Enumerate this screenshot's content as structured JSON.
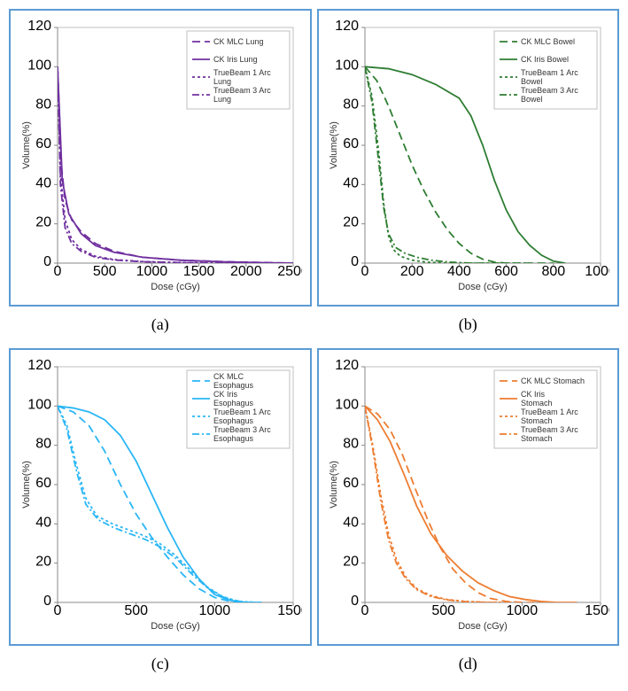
{
  "figure": {
    "background_color": "#ffffff",
    "panel_border_color": "#5b9bd5",
    "panel_border_width": 2,
    "axis_color": "#888888",
    "plot_area_border": "#bfbfbf",
    "caption_font": "Times New Roman",
    "caption_fontsize": 18,
    "axis_title_fontsize": 11,
    "tick_fontsize": 10,
    "legend_fontsize": 9,
    "line_width": 1.8,
    "panels": [
      {
        "id": "a",
        "caption": "(a)",
        "color": "#7030a0",
        "xlabel": "Dose (cGy)",
        "ylabel": "Volume(%)",
        "xlim": [
          0,
          2500
        ],
        "ylim": [
          0,
          120
        ],
        "xtick_step": 500,
        "ytick_step": 20,
        "legend_pos": "top-right",
        "series": [
          {
            "name": "CK MLC Lung",
            "dash": "9,5",
            "points": [
              [
                0,
                100
              ],
              [
                40,
                50
              ],
              [
                80,
                32
              ],
              [
                150,
                22
              ],
              [
                250,
                16
              ],
              [
                400,
                10
              ],
              [
                600,
                6
              ],
              [
                900,
                3
              ],
              [
                1300,
                1.5
              ],
              [
                1800,
                0.7
              ],
              [
                2200,
                0.3
              ],
              [
                2500,
                0
              ]
            ]
          },
          {
            "name": "CK Iris Lung",
            "dash": "",
            "points": [
              [
                0,
                100
              ],
              [
                50,
                42
              ],
              [
                120,
                25
              ],
              [
                250,
                15
              ],
              [
                400,
                9
              ],
              [
                600,
                5.5
              ],
              [
                900,
                3
              ],
              [
                1300,
                1.5
              ],
              [
                1800,
                0.6
              ],
              [
                2200,
                0.2
              ],
              [
                2500,
                0
              ]
            ]
          },
          {
            "name": "TrueBeam 1 Arc Lung",
            "dash": "3,3",
            "points": [
              [
                0,
                100
              ],
              [
                30,
                45
              ],
              [
                80,
                22
              ],
              [
                150,
                12
              ],
              [
                250,
                7
              ],
              [
                400,
                3.5
              ],
              [
                600,
                1.8
              ],
              [
                900,
                0.8
              ],
              [
                1300,
                0.3
              ],
              [
                1800,
                0.1
              ],
              [
                2200,
                0
              ],
              [
                2500,
                0
              ]
            ]
          },
          {
            "name": "TrueBeam 3 Arc Lung",
            "dash": "8,3,2,3",
            "points": [
              [
                0,
                100
              ],
              [
                30,
                40
              ],
              [
                80,
                18
              ],
              [
                150,
                10
              ],
              [
                250,
                6
              ],
              [
                400,
                3
              ],
              [
                600,
                1.6
              ],
              [
                900,
                0.7
              ],
              [
                1300,
                0.2
              ],
              [
                1800,
                0
              ],
              [
                2200,
                0
              ],
              [
                2500,
                0
              ]
            ]
          }
        ]
      },
      {
        "id": "b",
        "caption": "(b)",
        "color": "#2e7d32",
        "xlabel": "Dose (cGy)",
        "ylabel": "Volume(%)",
        "xlim": [
          0,
          1000
        ],
        "ylim": [
          0,
          120
        ],
        "xtick_step": 200,
        "ytick_step": 20,
        "legend_pos": "top-right",
        "series": [
          {
            "name": "CK MLC Bowel",
            "dash": "9,5",
            "points": [
              [
                0,
                100
              ],
              [
                50,
                93
              ],
              [
                100,
                80
              ],
              [
                150,
                65
              ],
              [
                200,
                50
              ],
              [
                250,
                37
              ],
              [
                300,
                26
              ],
              [
                350,
                17
              ],
              [
                400,
                10
              ],
              [
                450,
                5
              ],
              [
                500,
                2
              ],
              [
                550,
                0.5
              ],
              [
                600,
                0
              ],
              [
                700,
                0
              ],
              [
                800,
                0
              ]
            ]
          },
          {
            "name": "CK Iris Bowel",
            "dash": "",
            "points": [
              [
                0,
                100
              ],
              [
                100,
                99
              ],
              [
                200,
                96
              ],
              [
                300,
                91
              ],
              [
                400,
                84
              ],
              [
                450,
                75
              ],
              [
                500,
                60
              ],
              [
                550,
                42
              ],
              [
                600,
                27
              ],
              [
                650,
                16
              ],
              [
                700,
                9
              ],
              [
                750,
                4
              ],
              [
                800,
                1
              ],
              [
                850,
                0
              ]
            ]
          },
          {
            "name": "TrueBeam 1 Arc Bowel",
            "dash": "3,3",
            "points": [
              [
                0,
                100
              ],
              [
                30,
                85
              ],
              [
                60,
                55
              ],
              [
                80,
                30
              ],
              [
                100,
                14
              ],
              [
                120,
                7
              ],
              [
                150,
                3.5
              ],
              [
                200,
                1.5
              ],
              [
                260,
                0.5
              ],
              [
                350,
                0
              ],
              [
                500,
                0
              ],
              [
                700,
                0
              ]
            ]
          },
          {
            "name": "TrueBeam 3 Arc Bowel",
            "dash": "8,3,2,3",
            "points": [
              [
                0,
                100
              ],
              [
                30,
                82
              ],
              [
                60,
                50
              ],
              [
                80,
                28
              ],
              [
                100,
                15
              ],
              [
                130,
                8
              ],
              [
                170,
                5
              ],
              [
                220,
                3
              ],
              [
                280,
                1.5
              ],
              [
                360,
                0.5
              ],
              [
                450,
                0
              ],
              [
                600,
                0
              ]
            ]
          }
        ]
      },
      {
        "id": "c",
        "caption": "(c)",
        "color": "#29b6f6",
        "xlabel": "Dose (cGy)",
        "ylabel": "Volume(%)",
        "xlim": [
          0,
          1500
        ],
        "ylim": [
          0,
          120
        ],
        "xtick_step": 500,
        "ytick_step": 20,
        "legend_pos": "top-right",
        "series": [
          {
            "name": "CK MLC Esophagus",
            "dash": "9,5",
            "points": [
              [
                0,
                100
              ],
              [
                100,
                97
              ],
              [
                200,
                90
              ],
              [
                300,
                77
              ],
              [
                400,
                60
              ],
              [
                500,
                45
              ],
              [
                600,
                33
              ],
              [
                700,
                23
              ],
              [
                800,
                14
              ],
              [
                900,
                7
              ],
              [
                1000,
                2.5
              ],
              [
                1100,
                0.5
              ],
              [
                1200,
                0
              ],
              [
                1300,
                0
              ]
            ]
          },
          {
            "name": "CK Iris Esophagus",
            "dash": "",
            "points": [
              [
                0,
                100
              ],
              [
                100,
                99
              ],
              [
                200,
                97
              ],
              [
                300,
                93
              ],
              [
                400,
                85
              ],
              [
                500,
                72
              ],
              [
                600,
                55
              ],
              [
                700,
                38
              ],
              [
                800,
                23
              ],
              [
                900,
                12
              ],
              [
                1000,
                4
              ],
              [
                1100,
                1
              ],
              [
                1200,
                0
              ],
              [
                1300,
                0
              ]
            ]
          },
          {
            "name": "TrueBeam 1 Arc Esophagus",
            "dash": "3,3",
            "points": [
              [
                0,
                100
              ],
              [
                60,
                90
              ],
              [
                120,
                70
              ],
              [
                180,
                53
              ],
              [
                250,
                44
              ],
              [
                350,
                40
              ],
              [
                450,
                37
              ],
              [
                550,
                34
              ],
              [
                650,
                30
              ],
              [
                750,
                24
              ],
              [
                850,
                16
              ],
              [
                950,
                8
              ],
              [
                1050,
                3
              ],
              [
                1150,
                0.5
              ],
              [
                1250,
                0
              ]
            ]
          },
          {
            "name": "TrueBeam 3 Arc Esophagus",
            "dash": "8,3,2,3",
            "points": [
              [
                0,
                100
              ],
              [
                60,
                88
              ],
              [
                120,
                67
              ],
              [
                180,
                50
              ],
              [
                260,
                42
              ],
              [
                360,
                38
              ],
              [
                460,
                35
              ],
              [
                560,
                32
              ],
              [
                660,
                28
              ],
              [
                760,
                22
              ],
              [
                860,
                14
              ],
              [
                960,
                7
              ],
              [
                1060,
                2.5
              ],
              [
                1160,
                0.5
              ],
              [
                1260,
                0
              ]
            ]
          }
        ]
      },
      {
        "id": "d",
        "caption": "(d)",
        "color": "#ed7d31",
        "xlabel": "Dose (cGy)",
        "ylabel": "Volume(%)",
        "xlim": [
          0,
          1500
        ],
        "ylim": [
          0,
          120
        ],
        "xtick_step": 500,
        "ytick_step": 20,
        "legend_pos": "top-right",
        "series": [
          {
            "name": "CK MLC Stomach",
            "dash": "9,5",
            "points": [
              [
                0,
                100
              ],
              [
                80,
                96
              ],
              [
                160,
                88
              ],
              [
                240,
                75
              ],
              [
                320,
                58
              ],
              [
                400,
                42
              ],
              [
                480,
                28
              ],
              [
                560,
                17
              ],
              [
                640,
                10
              ],
              [
                720,
                5
              ],
              [
                800,
                2
              ],
              [
                900,
                0.5
              ],
              [
                1000,
                0
              ],
              [
                1200,
                0
              ]
            ]
          },
          {
            "name": "CK Iris Stomach",
            "dash": "",
            "points": [
              [
                0,
                100
              ],
              [
                80,
                93
              ],
              [
                160,
                82
              ],
              [
                250,
                65
              ],
              [
                330,
                49
              ],
              [
                420,
                35
              ],
              [
                520,
                24
              ],
              [
                620,
                16
              ],
              [
                720,
                10
              ],
              [
                820,
                6
              ],
              [
                920,
                3
              ],
              [
                1020,
                1.5
              ],
              [
                1120,
                0.5
              ],
              [
                1220,
                0
              ],
              [
                1350,
                0
              ]
            ]
          },
          {
            "name": "TrueBeam 1 Arc Stomach",
            "dash": "3,3",
            "points": [
              [
                0,
                100
              ],
              [
                50,
                80
              ],
              [
                100,
                55
              ],
              [
                150,
                35
              ],
              [
                200,
                22
              ],
              [
                260,
                13
              ],
              [
                330,
                7
              ],
              [
                420,
                3.5
              ],
              [
                520,
                1.5
              ],
              [
                640,
                0.5
              ],
              [
                800,
                0
              ],
              [
                1000,
                0
              ]
            ]
          },
          {
            "name": "TrueBeam 3 Arc Stomach",
            "dash": "8,3,2,3",
            "points": [
              [
                0,
                100
              ],
              [
                50,
                78
              ],
              [
                100,
                52
              ],
              [
                150,
                32
              ],
              [
                200,
                20
              ],
              [
                260,
                12
              ],
              [
                330,
                6.5
              ],
              [
                420,
                3
              ],
              [
                520,
                1.3
              ],
              [
                640,
                0.4
              ],
              [
                800,
                0
              ],
              [
                1000,
                0
              ]
            ]
          }
        ]
      }
    ]
  }
}
